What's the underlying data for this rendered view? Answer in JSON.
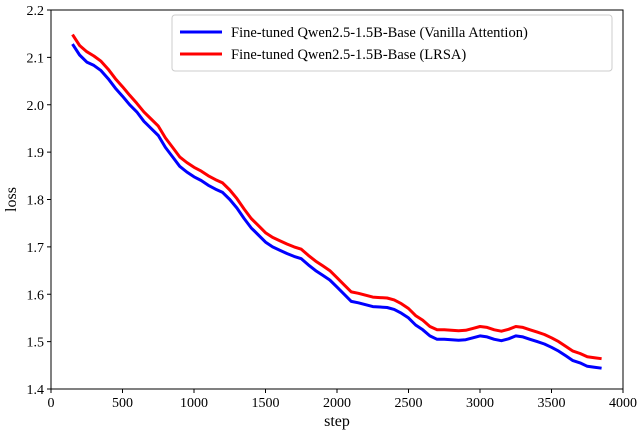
{
  "chart_data": {
    "type": "line",
    "title": "",
    "xlabel": "step",
    "ylabel": "loss",
    "xlim": [
      0,
      4000
    ],
    "ylim": [
      1.4,
      2.2
    ],
    "xticks": [
      0,
      500,
      1000,
      1500,
      2000,
      2500,
      3000,
      3500,
      4000
    ],
    "yticks": [
      1.4,
      1.5,
      1.6,
      1.7,
      1.8,
      1.9,
      2.0,
      2.1,
      2.2
    ],
    "xtick_labels": [
      "0",
      "500",
      "1000",
      "1500",
      "2000",
      "2500",
      "3000",
      "3500",
      "4000"
    ],
    "ytick_labels": [
      "1.4",
      "1.5",
      "1.6",
      "1.7",
      "1.8",
      "1.9",
      "2.0",
      "2.1",
      "2.2"
    ],
    "grid": false,
    "legend_position": "top-right",
    "series": [
      {
        "name": "Fine-tuned Qwen2.5-1.5B-Base (Vanilla Attention)",
        "color": "#0000ff",
        "x": [
          150,
          200,
          250,
          300,
          350,
          400,
          450,
          500,
          550,
          600,
          650,
          700,
          750,
          800,
          850,
          900,
          950,
          1000,
          1050,
          1100,
          1150,
          1200,
          1250,
          1300,
          1350,
          1400,
          1450,
          1500,
          1550,
          1600,
          1650,
          1700,
          1750,
          1800,
          1850,
          1900,
          1950,
          2000,
          2050,
          2100,
          2150,
          2200,
          2250,
          2300,
          2350,
          2400,
          2450,
          2500,
          2550,
          2600,
          2650,
          2700,
          2750,
          2800,
          2850,
          2900,
          2950,
          3000,
          3050,
          3100,
          3150,
          3200,
          3250,
          3300,
          3350,
          3400,
          3450,
          3500,
          3550,
          3600,
          3650,
          3700,
          3750,
          3800,
          3850
        ],
        "y": [
          2.128,
          2.105,
          2.09,
          2.083,
          2.072,
          2.055,
          2.035,
          2.018,
          2.0,
          1.985,
          1.965,
          1.95,
          1.935,
          1.91,
          1.89,
          1.87,
          1.858,
          1.848,
          1.84,
          1.83,
          1.822,
          1.815,
          1.8,
          1.782,
          1.76,
          1.74,
          1.725,
          1.71,
          1.7,
          1.693,
          1.686,
          1.68,
          1.675,
          1.662,
          1.65,
          1.64,
          1.63,
          1.615,
          1.6,
          1.585,
          1.582,
          1.578,
          1.574,
          1.573,
          1.572,
          1.568,
          1.56,
          1.55,
          1.535,
          1.525,
          1.512,
          1.505,
          1.505,
          1.504,
          1.503,
          1.504,
          1.508,
          1.512,
          1.51,
          1.505,
          1.502,
          1.506,
          1.512,
          1.51,
          1.505,
          1.5,
          1.495,
          1.488,
          1.48,
          1.47,
          1.46,
          1.455,
          1.448,
          1.446,
          1.444
        ]
      },
      {
        "name": "Fine-tuned Qwen2.5-1.5B-Base (LRSA)",
        "color": "#ff0000",
        "x": [
          150,
          200,
          250,
          300,
          350,
          400,
          450,
          500,
          550,
          600,
          650,
          700,
          750,
          800,
          850,
          900,
          950,
          1000,
          1050,
          1100,
          1150,
          1200,
          1250,
          1300,
          1350,
          1400,
          1450,
          1500,
          1550,
          1600,
          1650,
          1700,
          1750,
          1800,
          1850,
          1900,
          1950,
          2000,
          2050,
          2100,
          2150,
          2200,
          2250,
          2300,
          2350,
          2400,
          2450,
          2500,
          2550,
          2600,
          2650,
          2700,
          2750,
          2800,
          2850,
          2900,
          2950,
          3000,
          3050,
          3100,
          3150,
          3200,
          3250,
          3300,
          3350,
          3400,
          3450,
          3500,
          3550,
          3600,
          3650,
          3700,
          3750,
          3800,
          3850
        ],
        "y": [
          2.148,
          2.125,
          2.112,
          2.103,
          2.092,
          2.075,
          2.055,
          2.038,
          2.02,
          2.003,
          1.985,
          1.97,
          1.955,
          1.93,
          1.91,
          1.89,
          1.878,
          1.868,
          1.86,
          1.85,
          1.842,
          1.835,
          1.82,
          1.802,
          1.78,
          1.76,
          1.745,
          1.73,
          1.72,
          1.713,
          1.706,
          1.7,
          1.695,
          1.682,
          1.67,
          1.66,
          1.65,
          1.635,
          1.62,
          1.605,
          1.602,
          1.598,
          1.594,
          1.593,
          1.592,
          1.588,
          1.58,
          1.57,
          1.555,
          1.545,
          1.532,
          1.525,
          1.525,
          1.524,
          1.523,
          1.524,
          1.528,
          1.532,
          1.53,
          1.525,
          1.522,
          1.526,
          1.532,
          1.53,
          1.525,
          1.52,
          1.515,
          1.508,
          1.5,
          1.49,
          1.48,
          1.475,
          1.468,
          1.466,
          1.464
        ]
      }
    ]
  }
}
